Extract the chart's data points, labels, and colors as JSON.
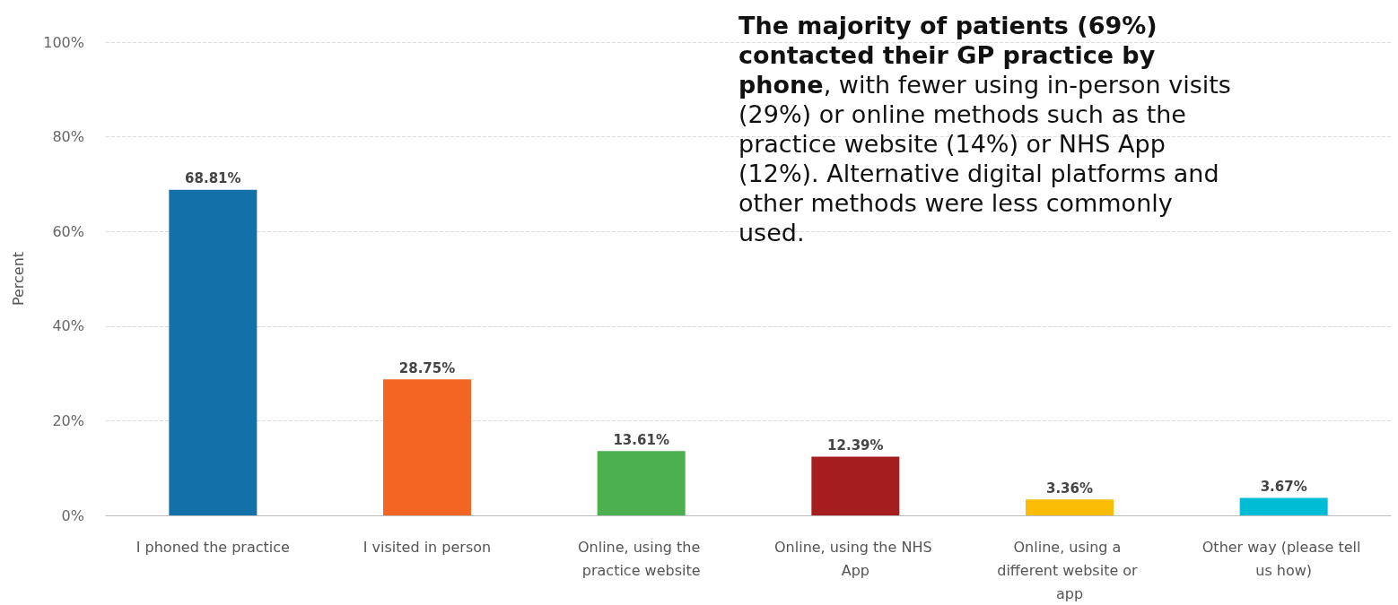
{
  "chart_data": {
    "type": "bar",
    "ylabel": "Percent",
    "categories": [
      "I phoned the practice",
      "I visited in person",
      "Online, using the practice website",
      "Online, using the NHS App",
      "Online, using a different website or app",
      "Other way (please tell us how)"
    ],
    "values": [
      68.81,
      28.75,
      13.61,
      12.39,
      3.36,
      3.67
    ],
    "colors": [
      "#1470a8",
      "#f26522",
      "#4caf50",
      "#a51d1f",
      "#fbbc05",
      "#00bcd4"
    ],
    "value_labels": [
      "68.81%",
      "28.75%",
      "13.61%",
      "12.39%",
      "3.36%",
      "3.67%"
    ],
    "ylim": [
      0,
      100
    ],
    "yticks": [
      {
        "value": 0,
        "label": "0%"
      },
      {
        "value": 20,
        "label": "20%"
      },
      {
        "value": 40,
        "label": "40%"
      },
      {
        "value": 60,
        "label": "60%"
      },
      {
        "value": 80,
        "label": "80%"
      },
      {
        "value": 100,
        "label": "100%"
      }
    ],
    "grid": "y",
    "annotations": [
      "The majority of patients (69%) contacted their GP practice by phone",
      ", with fewer using in-person visits (29%) or online methods such as the practice website (14%) or NHS App (12%). Alternative digital platforms and other methods were less commonly used."
    ]
  }
}
